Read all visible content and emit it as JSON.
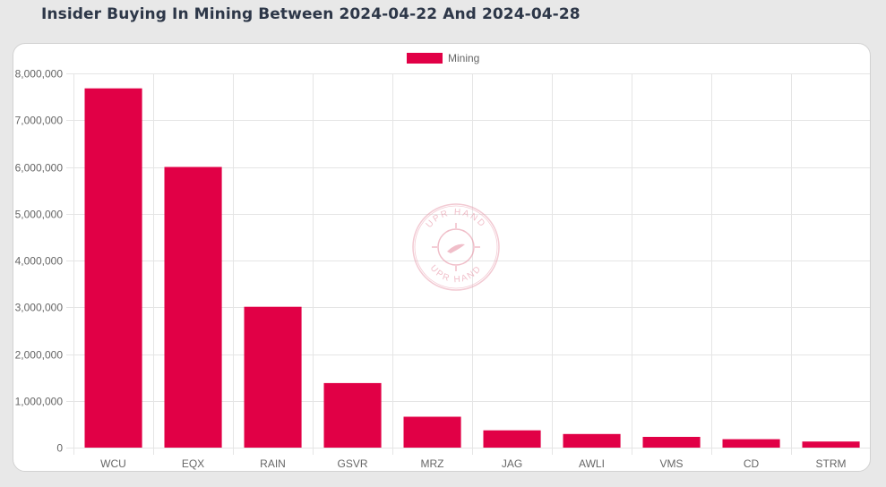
{
  "page": {
    "title": "Insider Buying In Mining Between 2024-04-22 And 2024-04-28"
  },
  "watermark": {
    "top_text": "UPR HAND",
    "bottom_text": "UPR HAND"
  },
  "colors": {
    "bar": "#e10046",
    "grid": "#e5e5e5",
    "axis_text": "#666666"
  },
  "chart_data": {
    "type": "bar",
    "title": "Insider Buying In Mining Between 2024-04-22 And 2024-04-28",
    "xlabel": "",
    "ylabel": "",
    "legend_position": "top-center",
    "categories": [
      "WCU",
      "EQX",
      "RAIN",
      "GSVR",
      "MRZ",
      "JAG",
      "AWLI",
      "VMS",
      "CD",
      "STRM"
    ],
    "series": [
      {
        "name": "Mining",
        "values": [
          7680000,
          6000000,
          3010000,
          1380000,
          660000,
          370000,
          290000,
          230000,
          180000,
          130000
        ]
      }
    ],
    "ylim": [
      0,
      8000000
    ],
    "yticks": [
      0,
      1000000,
      2000000,
      3000000,
      4000000,
      5000000,
      6000000,
      7000000,
      8000000
    ],
    "ytick_labels": [
      "0",
      "1,000,000",
      "2,000,000",
      "3,000,000",
      "4,000,000",
      "5,000,000",
      "6,000,000",
      "7,000,000",
      "8,000,000"
    ],
    "grid": true
  }
}
